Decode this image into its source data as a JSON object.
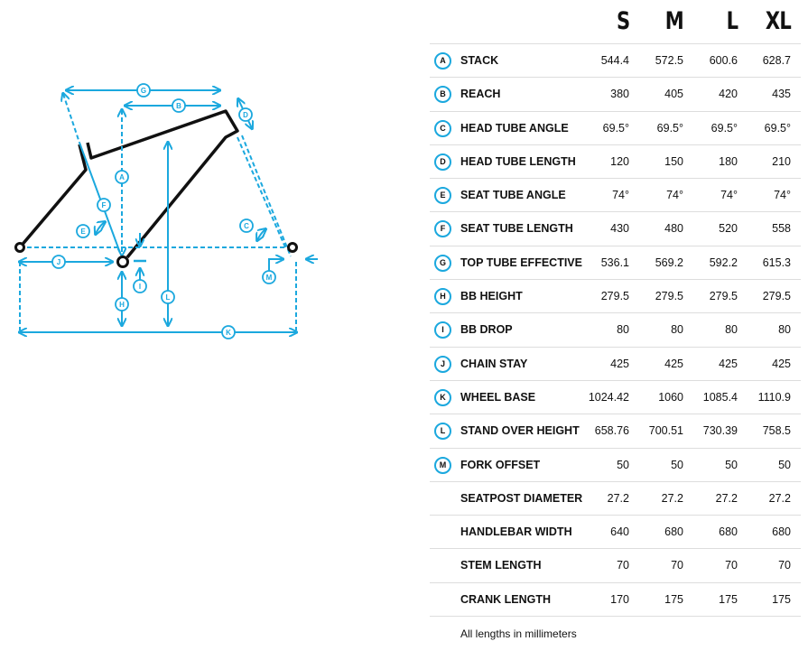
{
  "sizes": [
    "S",
    "M",
    "L",
    "XL"
  ],
  "rows": [
    {
      "badge": "A",
      "label": "STACK",
      "values": [
        "544.4",
        "572.5",
        "600.6",
        "628.7"
      ]
    },
    {
      "badge": "B",
      "label": "REACH",
      "values": [
        "380",
        "405",
        "420",
        "435"
      ]
    },
    {
      "badge": "C",
      "label": "HEAD TUBE ANGLE",
      "values": [
        "69.5°",
        "69.5°",
        "69.5°",
        "69.5°"
      ]
    },
    {
      "badge": "D",
      "label": "HEAD TUBE LENGTH",
      "values": [
        "120",
        "150",
        "180",
        "210"
      ]
    },
    {
      "badge": "E",
      "label": "SEAT TUBE ANGLE",
      "values": [
        "74°",
        "74°",
        "74°",
        "74°"
      ]
    },
    {
      "badge": "F",
      "label": "SEAT TUBE LENGTH",
      "values": [
        "430",
        "480",
        "520",
        "558"
      ]
    },
    {
      "badge": "G",
      "label": "TOP TUBE EFFECTIVE",
      "values": [
        "536.1",
        "569.2",
        "592.2",
        "615.3"
      ]
    },
    {
      "badge": "H",
      "label": "BB HEIGHT",
      "values": [
        "279.5",
        "279.5",
        "279.5",
        "279.5"
      ]
    },
    {
      "badge": "I",
      "label": "BB DROP",
      "values": [
        "80",
        "80",
        "80",
        "80"
      ]
    },
    {
      "badge": "J",
      "label": "CHAIN STAY",
      "values": [
        "425",
        "425",
        "425",
        "425"
      ]
    },
    {
      "badge": "K",
      "label": "WHEEL BASE",
      "values": [
        "1024.42",
        "1060",
        "1085.4",
        "1110.9"
      ]
    },
    {
      "badge": "L",
      "label": "STAND OVER HEIGHT",
      "values": [
        "658.76",
        "700.51",
        "730.39",
        "758.5"
      ]
    },
    {
      "badge": "M",
      "label": "FORK OFFSET",
      "values": [
        "50",
        "50",
        "50",
        "50"
      ]
    },
    {
      "badge": "",
      "label": "SEATPOST DIAMETER",
      "values": [
        "27.2",
        "27.2",
        "27.2",
        "27.2"
      ]
    },
    {
      "badge": "",
      "label": "HANDLEBAR WIDTH",
      "values": [
        "640",
        "680",
        "680",
        "680"
      ]
    },
    {
      "badge": "",
      "label": "STEM LENGTH",
      "values": [
        "70",
        "70",
        "70",
        "70"
      ]
    },
    {
      "badge": "",
      "label": "CRANK LENGTH",
      "values": [
        "170",
        "175",
        "175",
        "175"
      ]
    }
  ],
  "note": "All lengths in millimeters",
  "colors": {
    "accent": "#1ba8de",
    "frame": "#111111"
  }
}
